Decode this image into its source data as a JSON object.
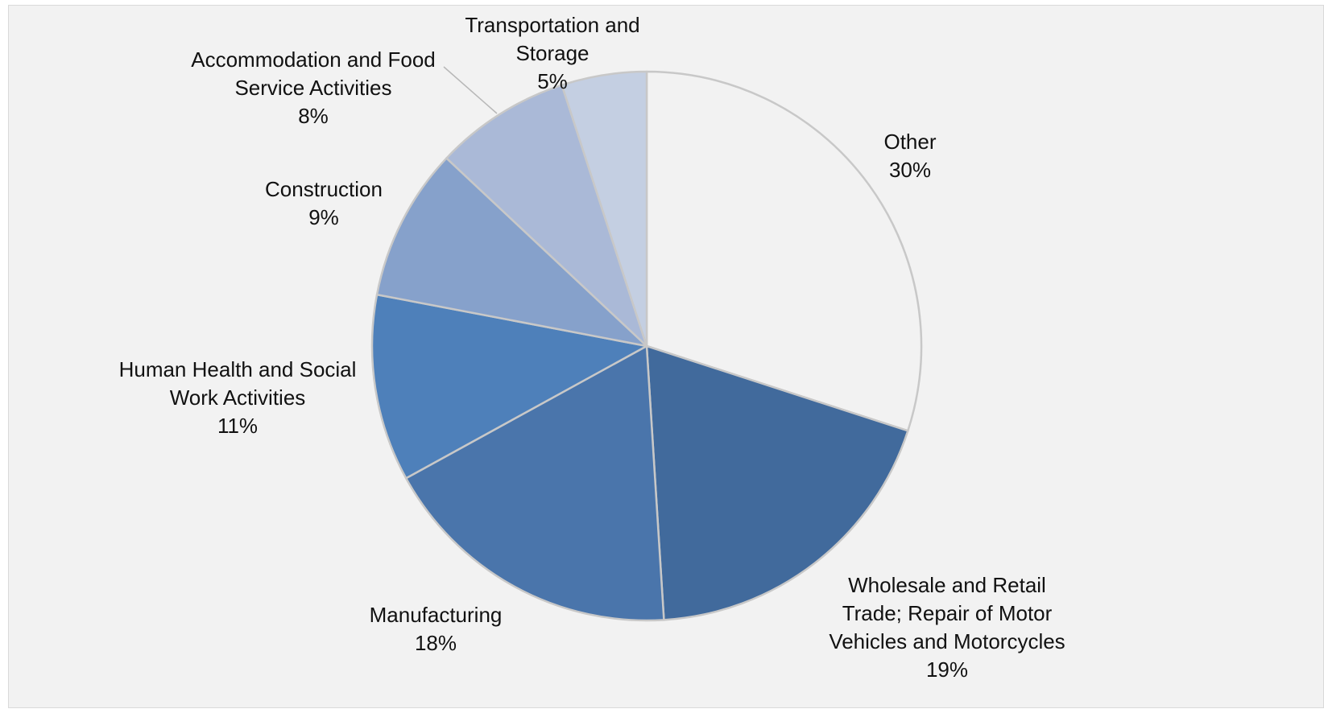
{
  "chart_data": {
    "type": "pie",
    "title": "",
    "slices": [
      {
        "name_lines": [
          "Other"
        ],
        "pct_label": "30%",
        "value": 30,
        "color": "#f2f2f2"
      },
      {
        "name_lines": [
          "Wholesale and Retail",
          "Trade; Repair of Motor",
          "Vehicles and Motorcycles"
        ],
        "pct_label": "19%",
        "value": 19,
        "color": "#416a9c"
      },
      {
        "name_lines": [
          "Manufacturing"
        ],
        "pct_label": "18%",
        "value": 18,
        "color": "#4a75ab"
      },
      {
        "name_lines": [
          "Human Health and Social",
          "Work Activities"
        ],
        "pct_label": "11%",
        "value": 11,
        "color": "#4e80ba"
      },
      {
        "name_lines": [
          "Construction"
        ],
        "pct_label": "9%",
        "value": 9,
        "color": "#86a1cb"
      },
      {
        "name_lines": [
          "Accommodation and Food",
          "Service Activities"
        ],
        "pct_label": "8%",
        "value": 8,
        "color": "#aab9d7"
      },
      {
        "name_lines": [
          "Transportation and",
          "Storage"
        ],
        "pct_label": "5%",
        "value": 5,
        "color": "#c4cfe2"
      }
    ],
    "start_angle": "12 o'clock, clockwise",
    "legend": "none",
    "data_labels": "outside, category name and percentage",
    "slice_border_color": "#c8c8c8",
    "label_color": "#111111"
  }
}
